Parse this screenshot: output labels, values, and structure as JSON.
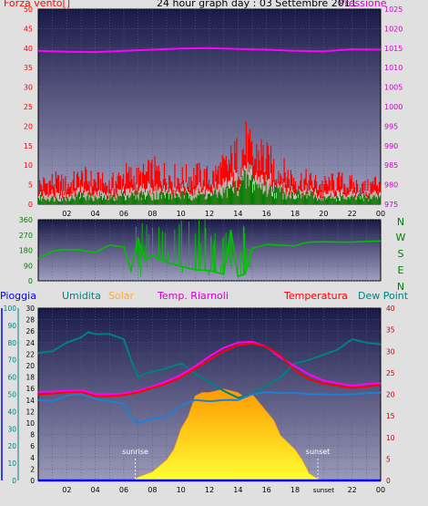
{
  "header": {
    "wind_title": "Forza vento",
    "wind_unit": "[]",
    "center_title": "24 hour graph day : 03 Settembre 2011",
    "pressure_title": "Pressione"
  },
  "bottom_header": {
    "rain": "Pioggia",
    "humidity": "Umidita",
    "solar": "Solar",
    "temp_riarnoli": "Temp. Riarnoli",
    "temperature": "Temperatura",
    "dew_point": "Dew Point"
  },
  "compass_letters": [
    "N",
    "W",
    "S",
    "E",
    "N"
  ],
  "annotations": {
    "sunrise": "sunrise",
    "sunset": "sunset",
    "sunset_tick": "sunset"
  },
  "x_tick_labels": [
    "02",
    "04",
    "06",
    "08",
    "10",
    "12",
    "14",
    "16",
    "18",
    "20",
    "22",
    "00"
  ],
  "colors": {
    "plot_bg_top": "#1a1a4a",
    "plot_bg_bottom": "#9090b4",
    "frame": "#e0e0e0",
    "wind_gust": "#ff0000",
    "wind_avg": "#008000",
    "wind_mid": "#c0c0c0",
    "pressure": "#ff00ff",
    "direction": "#00c000",
    "humidity": "#008080",
    "dew": "#1f7fd0",
    "temp": "#ff0000",
    "temp_riarnoli": "#ff00ff",
    "solar": "#ffff00",
    "solar_edge": "#ff9900",
    "rain": "#0000ff",
    "title_red": "#ff0000",
    "title_magenta": "#cc00cc"
  },
  "chart_data": [
    {
      "type": "bar",
      "name": "wind",
      "title": "Forza vento",
      "xlim": [
        0,
        24
      ],
      "ylim": [
        0,
        50
      ],
      "y_ticks": [
        0,
        5,
        10,
        15,
        20,
        25,
        30,
        35,
        40,
        45,
        50
      ],
      "x": [
        0,
        1,
        2,
        3,
        4,
        5,
        6,
        7,
        8,
        9,
        10,
        11,
        12,
        13,
        14,
        14.5,
        15,
        15.5,
        16,
        17,
        18,
        19,
        20,
        21,
        22,
        23,
        24
      ],
      "series": [
        {
          "name": "gust",
          "values": [
            6,
            7,
            6,
            8,
            7,
            6,
            9,
            8,
            10,
            9,
            8,
            9,
            8,
            11,
            15,
            18,
            14,
            16,
            13,
            10,
            8,
            7,
            6,
            7,
            6,
            5,
            8
          ]
        },
        {
          "name": "average",
          "values": [
            2,
            2,
            2,
            3,
            2,
            2,
            3,
            3,
            3,
            3,
            3,
            3,
            3,
            4,
            6,
            8,
            7,
            6,
            5,
            4,
            3,
            3,
            2,
            2,
            2,
            2,
            3
          ]
        }
      ]
    },
    {
      "type": "line",
      "name": "pressure",
      "title": "Pressione",
      "xlim": [
        0,
        24
      ],
      "ylim": [
        975,
        1025
      ],
      "y_ticks": [
        975,
        980,
        985,
        990,
        995,
        1000,
        1005,
        1010,
        1015,
        1020,
        1025
      ],
      "x": [
        0,
        2,
        4,
        6,
        8,
        10,
        12,
        14,
        16,
        18,
        20,
        22,
        24
      ],
      "values": [
        1014.3,
        1014.1,
        1014,
        1014.3,
        1014.6,
        1014.9,
        1015,
        1014.8,
        1014.6,
        1014.3,
        1014.2,
        1014.7,
        1014.6
      ]
    },
    {
      "type": "line",
      "name": "wind_direction",
      "xlim": [
        0,
        24
      ],
      "ylim": [
        0,
        360
      ],
      "y_ticks": [
        0,
        90,
        180,
        270,
        360
      ],
      "x": [
        0,
        1,
        2,
        3,
        4,
        4.5,
        5,
        6,
        6.5,
        7,
        7.5,
        8,
        9,
        10,
        11,
        12,
        13,
        13.5,
        14,
        14.5,
        15,
        16,
        17,
        18,
        18.5,
        19,
        20,
        21,
        22,
        23,
        24
      ],
      "values": [
        130,
        175,
        185,
        180,
        165,
        190,
        210,
        200,
        60,
        250,
        120,
        150,
        110,
        85,
        65,
        60,
        40,
        300,
        25,
        40,
        190,
        215,
        210,
        205,
        220,
        228,
        230,
        228,
        228,
        232,
        234
      ]
    },
    {
      "type": "area",
      "name": "solar",
      "xlim": [
        0,
        24
      ],
      "x": [
        0,
        6.4,
        6.8,
        7,
        8,
        9,
        9.5,
        10,
        10.5,
        11,
        11.5,
        12,
        12.5,
        13,
        13.5,
        14,
        14.5,
        15,
        15.5,
        16,
        16.5,
        17,
        17.5,
        18,
        18.5,
        19,
        19.6,
        20,
        24
      ],
      "values": [
        0,
        0,
        1,
        2,
        5,
        12,
        18,
        30,
        37,
        49,
        51,
        51,
        52,
        53,
        52,
        51,
        48,
        50,
        45,
        40,
        35,
        26,
        22,
        18,
        12,
        4,
        1,
        0,
        0
      ]
    },
    {
      "type": "line",
      "name": "humidity",
      "xlim": [
        0,
        24
      ],
      "ylim": [
        0,
        100
      ],
      "y_ticks": [
        0,
        10,
        20,
        30,
        40,
        50,
        60,
        70,
        80,
        90,
        100
      ],
      "x": [
        0,
        1,
        2,
        3,
        3.5,
        4,
        5,
        6,
        6.5,
        7,
        7.5,
        8,
        9,
        10,
        11,
        12,
        13,
        14,
        15,
        16,
        17,
        18,
        19,
        20,
        21,
        22,
        23,
        24
      ],
      "values": [
        74,
        75,
        80,
        83,
        86,
        85,
        85,
        82,
        70,
        60,
        62,
        63,
        65,
        68,
        62,
        57,
        52,
        48,
        50,
        55,
        60,
        68,
        70,
        73,
        76,
        82,
        80,
        79
      ]
    },
    {
      "type": "line",
      "name": "dew_point",
      "xlim": [
        0,
        24
      ],
      "ylim": [
        0,
        30
      ],
      "x": [
        0,
        1,
        2,
        3,
        4,
        5,
        6,
        6.5,
        7,
        8,
        9,
        10,
        11,
        12,
        13,
        14,
        15,
        16,
        17,
        18,
        19,
        20,
        21,
        22,
        23,
        24
      ],
      "values": [
        14,
        13.8,
        14.8,
        15,
        14.2,
        13.8,
        13.4,
        11,
        10,
        10.8,
        11,
        13,
        14,
        13.8,
        14,
        14,
        15,
        15.4,
        15.2,
        15.3,
        15,
        15,
        14.9,
        15,
        15.2,
        15.3
      ]
    },
    {
      "type": "line",
      "name": "temperatura",
      "xlim": [
        0,
        24
      ],
      "ylim": [
        0,
        40
      ],
      "y_ticks": [
        0,
        5,
        10,
        15,
        20,
        25,
        30,
        35,
        40
      ],
      "x": [
        0,
        1,
        2,
        3,
        4,
        5,
        6,
        7,
        8,
        9,
        10,
        11,
        12,
        13,
        14,
        15,
        16,
        17,
        18,
        19,
        20,
        21,
        22,
        23,
        24
      ],
      "values": [
        20,
        20.2,
        20.5,
        20.6,
        19.6,
        19.6,
        19.8,
        20.5,
        21.5,
        22.5,
        24,
        26,
        28,
        30,
        31.4,
        31.8,
        31,
        29,
        25.5,
        23.5,
        22.5,
        22,
        21.5,
        21.8,
        22.2
      ]
    },
    {
      "type": "line",
      "name": "temp_riarnoli",
      "xlim": [
        0,
        24
      ],
      "ylim": [
        0,
        40
      ],
      "x": [
        0,
        1,
        2,
        3,
        4,
        5,
        6,
        7,
        8,
        9,
        10,
        11,
        12,
        13,
        14,
        15,
        16,
        17,
        18,
        19,
        20,
        21,
        22,
        23,
        24
      ],
      "values": [
        20.6,
        20.6,
        20.8,
        21,
        20,
        20,
        20.2,
        20.8,
        21.8,
        23,
        24.5,
        26.5,
        28.8,
        30.8,
        32,
        32.2,
        31,
        28.5,
        26.5,
        24.6,
        23.2,
        22.6,
        22,
        22.4,
        22.6
      ]
    },
    {
      "type": "line",
      "name": "pioggia",
      "xlim": [
        0,
        24
      ],
      "ylim": [
        0,
        100
      ],
      "x": [
        0,
        24
      ],
      "values": [
        0,
        0
      ]
    }
  ],
  "axes": {
    "bottom_left_rain": [
      0,
      10,
      20,
      30,
      40,
      50,
      60,
      70,
      80,
      90,
      100
    ],
    "bottom_left_30": [
      0,
      2,
      4,
      6,
      8,
      10,
      12,
      14,
      16,
      18,
      20,
      22,
      24,
      26,
      28,
      30
    ],
    "bottom_right_temp": [
      0,
      5,
      10,
      15,
      20,
      25,
      30,
      35,
      40
    ]
  }
}
